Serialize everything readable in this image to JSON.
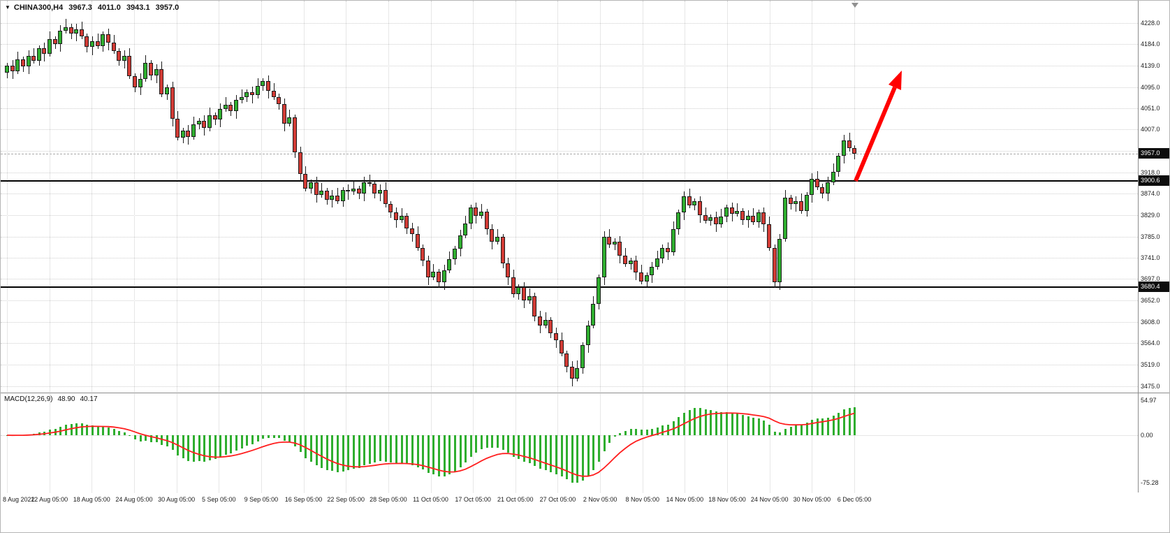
{
  "header": {
    "symbol_period": "CHINA300,H4",
    "open": "3967.3",
    "high": "4011.0",
    "low": "3943.1",
    "close": "3957.0"
  },
  "price_axis": {
    "ticks": [
      {
        "label": "4228.0",
        "value": 4228.0
      },
      {
        "label": "4184.0",
        "value": 4184.0
      },
      {
        "label": "4139.0",
        "value": 4139.0
      },
      {
        "label": "4095.0",
        "value": 4095.0
      },
      {
        "label": "4051.0",
        "value": 4051.0
      },
      {
        "label": "4007.0",
        "value": 4007.0
      },
      {
        "label": "",
        "value": 3962.3
      },
      {
        "label": "3918.0",
        "value": 3918.0
      },
      {
        "label": "3874.0",
        "value": 3874.0
      },
      {
        "label": "3829.0",
        "value": 3829.0
      },
      {
        "label": "3785.0",
        "value": 3785.0
      },
      {
        "label": "3741.0",
        "value": 3741.0
      },
      {
        "label": "3697.0",
        "value": 3697.0
      },
      {
        "label": "3652.0",
        "value": 3652.0
      },
      {
        "label": "3608.0",
        "value": 3608.0
      },
      {
        "label": "3564.0",
        "value": 3564.0
      },
      {
        "label": "3519.0",
        "value": 3519.0
      },
      {
        "label": "3475.0",
        "value": 3475.0
      }
    ],
    "current_badge": {
      "label": "3957.0",
      "value": 3957.0
    },
    "line_badges": [
      {
        "label": "3900.6",
        "value": 3900.6
      },
      {
        "label": "3680.4",
        "value": 3680.4
      }
    ]
  },
  "time_axis": {
    "labels": [
      "8 Aug 2022",
      "12 Aug 05:00",
      "18 Aug 05:00",
      "24 Aug 05:00",
      "30 Aug 05:00",
      "5 Sep 05:00",
      "9 Sep 05:00",
      "16 Sep 05:00",
      "22 Sep 05:00",
      "28 Sep 05:00",
      "11 Oct 05:00",
      "17 Oct 05:00",
      "21 Oct 05:00",
      "27 Oct 05:00",
      "2 Nov 05:00",
      "8 Nov 05:00",
      "14 Nov 05:00",
      "18 Nov 05:00",
      "24 Nov 05:00",
      "30 Nov 05:00",
      "6 Dec 05:00"
    ]
  },
  "macd_panel": {
    "name": "MACD(12,26,9)",
    "value_macd": "48.90",
    "value_signal": "40.17",
    "ticks": [
      {
        "label": "54.97",
        "value": 54.97
      },
      {
        "label": "0.00",
        "value": 0
      },
      {
        "label": "-75.28",
        "value": -75.28
      }
    ]
  },
  "colors": {
    "bull": "#2fae2f",
    "bear": "#d23b35",
    "wick": "#1c1c1c",
    "grid": "#cfcfcf",
    "object_line": "#000000",
    "signal_line": "#ff1e1e",
    "arrow": "#ff0000",
    "badge_bg": "#0d0d0d",
    "axis_text": "#1b1b1b"
  },
  "chart_data": {
    "type": "candlestick",
    "symbol": "CHINA300",
    "timeframe": "H4",
    "title": "CHINA300,H4",
    "ohlc_display": {
      "open": 3967.3,
      "high": 4011.0,
      "low": 3943.1,
      "close": 3957.0
    },
    "ylim": [
      3475.0,
      4228.0
    ],
    "x_labels": [
      "8 Aug 2022",
      "12 Aug 05:00",
      "18 Aug 05:00",
      "24 Aug 05:00",
      "30 Aug 05:00",
      "5 Sep 05:00",
      "9 Sep 05:00",
      "16 Sep 05:00",
      "22 Sep 05:00",
      "28 Sep 05:00",
      "11 Oct 05:00",
      "17 Oct 05:00",
      "21 Oct 05:00",
      "27 Oct 05:00",
      "2 Nov 05:00",
      "8 Nov 05:00",
      "14 Nov 05:00",
      "18 Nov 05:00",
      "24 Nov 05:00",
      "30 Nov 05:00",
      "6 Dec 05:00"
    ],
    "first_open": 4125,
    "closes": [
      4140,
      4128,
      4152,
      4138,
      4160,
      4150,
      4176,
      4164,
      4195,
      4185,
      4212,
      4220,
      4206,
      4215,
      4200,
      4178,
      4190,
      4180,
      4205,
      4188,
      4170,
      4150,
      4160,
      4118,
      4095,
      4112,
      4145,
      4120,
      4132,
      4080,
      4095,
      4030,
      3990,
      4005,
      3992,
      4018,
      4025,
      4010,
      4036,
      4028,
      4050,
      4058,
      4046,
      4068,
      4075,
      4085,
      4078,
      4098,
      4108,
      4088,
      4075,
      4060,
      4020,
      4032,
      3960,
      3915,
      3885,
      3898,
      3872,
      3880,
      3862,
      3870,
      3858,
      3882,
      3878,
      3885,
      3874,
      3898,
      3895,
      3875,
      3882,
      3852,
      3835,
      3820,
      3828,
      3802,
      3790,
      3762,
      3735,
      3700,
      3712,
      3690,
      3715,
      3738,
      3760,
      3788,
      3812,
      3845,
      3828,
      3836,
      3800,
      3775,
      3785,
      3730,
      3700,
      3665,
      3680,
      3652,
      3662,
      3620,
      3600,
      3612,
      3585,
      3570,
      3542,
      3515,
      3490,
      3512,
      3560,
      3600,
      3645,
      3700,
      3785,
      3768,
      3775,
      3745,
      3728,
      3735,
      3710,
      3692,
      3705,
      3722,
      3740,
      3762,
      3752,
      3800,
      3835,
      3868,
      3850,
      3858,
      3830,
      3818,
      3825,
      3810,
      3826,
      3845,
      3832,
      3838,
      3820,
      3828,
      3815,
      3835,
      3810,
      3762,
      3690,
      3780,
      3865,
      3852,
      3858,
      3838,
      3872,
      3905,
      3888,
      3875,
      3898,
      3920,
      3952,
      3985,
      3968,
      3957
    ],
    "annotations": {
      "horizontal_lines": [
        3900.6,
        3680.4
      ],
      "trend_arrow": "up",
      "current_price": 3957.0
    },
    "indicator": {
      "name": "MACD",
      "params": [
        12,
        26,
        9
      ],
      "displayed_values": [
        48.9,
        40.17
      ],
      "ylim": [
        -75.28,
        54.97
      ]
    }
  }
}
